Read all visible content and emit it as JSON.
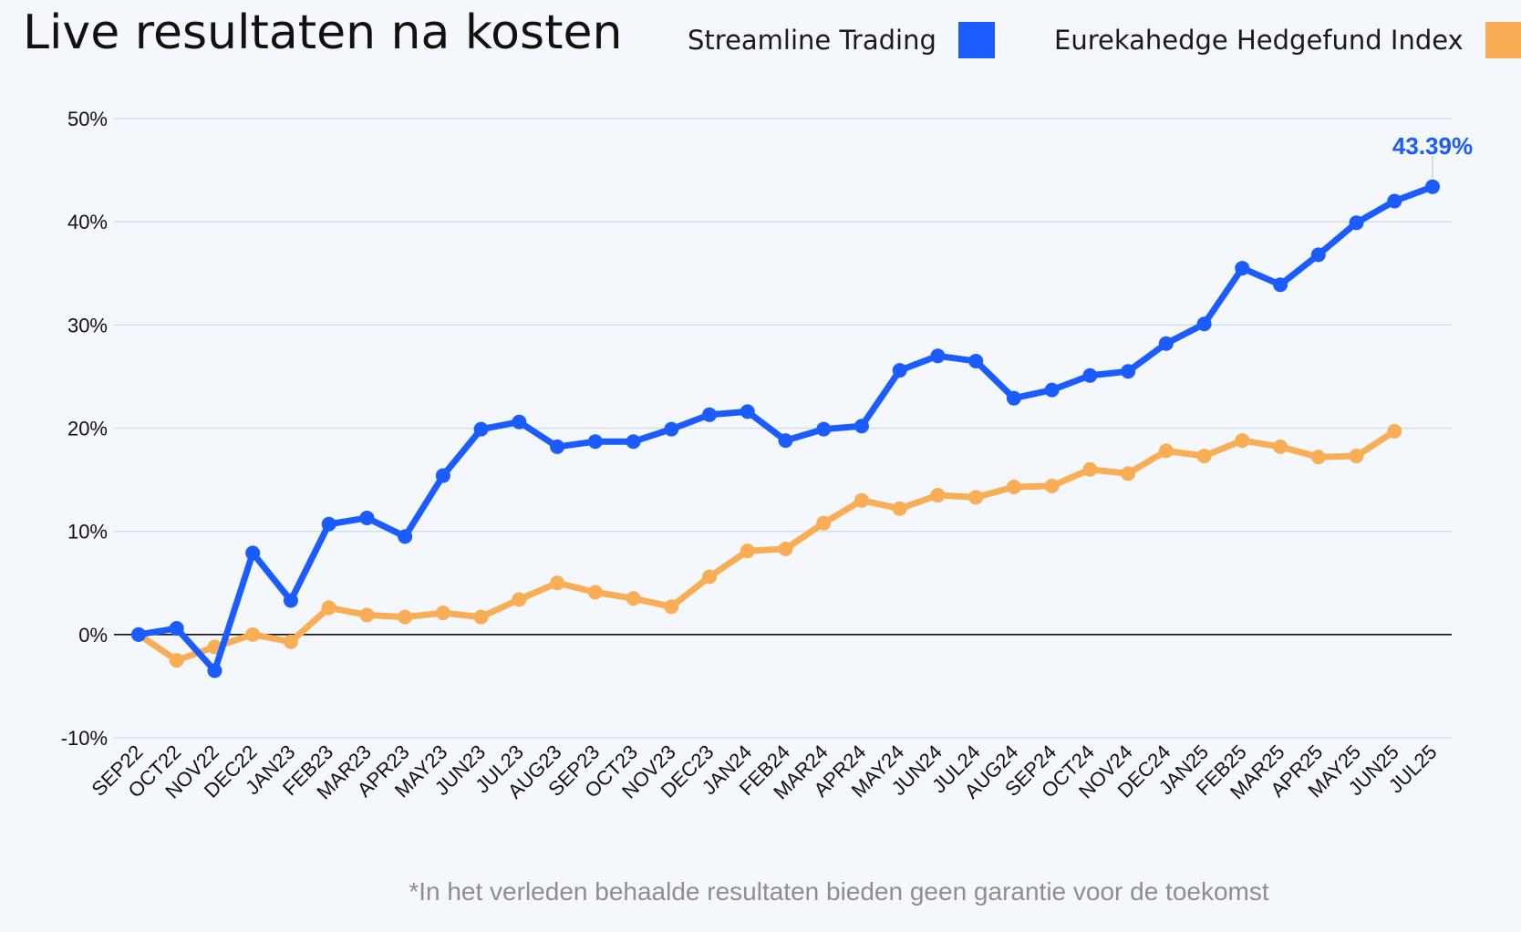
{
  "chart_data": {
    "type": "line",
    "title": "Live resultaten na kosten",
    "xlabel": "",
    "ylabel": "",
    "ylim": [
      -10,
      50
    ],
    "yticks": [
      -10,
      0,
      10,
      20,
      30,
      40,
      50
    ],
    "ytick_labels": [
      "-10%",
      "0%",
      "10%",
      "20%",
      "30%",
      "40%",
      "50%"
    ],
    "grid": true,
    "legend_position": "top-right",
    "categories": [
      "SEP22",
      "OCT22",
      "NOV22",
      "DEC22",
      "JAN23",
      "FEB23",
      "MAR23",
      "APR23",
      "MAY23",
      "JUN23",
      "JUL23",
      "AUG23",
      "SEP23",
      "OCT23",
      "NOV23",
      "DEC23",
      "JAN24",
      "FEB24",
      "MAR24",
      "APR24",
      "MAY24",
      "JUN24",
      "JUL24",
      "AUG24",
      "SEP24",
      "OCT24",
      "NOV24",
      "DEC24",
      "JAN25",
      "FEB25",
      "MAR25",
      "APR25",
      "MAY25",
      "JUN25",
      "JUL25"
    ],
    "series": [
      {
        "name": "Streamline Trading",
        "color": "#1a5cff",
        "values": [
          0,
          0.6,
          -3.5,
          7.9,
          3.3,
          10.7,
          11.3,
          9.5,
          15.4,
          19.9,
          20.6,
          18.2,
          18.7,
          18.7,
          19.9,
          21.3,
          21.6,
          18.8,
          19.9,
          20.2,
          25.6,
          27.0,
          26.5,
          22.9,
          23.7,
          25.1,
          25.5,
          28.2,
          30.1,
          35.5,
          33.9,
          36.8,
          39.9,
          42.0,
          43.39
        ]
      },
      {
        "name": "Eurekahedge Hedgefund Index",
        "color": "#f9ae55",
        "values": [
          0,
          -2.5,
          -1.2,
          0,
          -0.7,
          2.6,
          1.9,
          1.7,
          2.1,
          1.7,
          3.4,
          5.0,
          4.1,
          3.5,
          2.7,
          5.6,
          8.1,
          8.3,
          10.8,
          13.0,
          12.2,
          13.5,
          13.3,
          14.3,
          14.4,
          16.0,
          15.6,
          17.8,
          17.3,
          18.8,
          18.2,
          17.2,
          17.3,
          19.7,
          null
        ]
      }
    ],
    "annotations": [
      {
        "text": "43.39%",
        "series": "Streamline Trading",
        "category": "JUL25",
        "color": "#1a5cff"
      }
    ]
  },
  "footnote": "*In het verleden behaalde resultaten bieden geen garantie voor de toekomst"
}
